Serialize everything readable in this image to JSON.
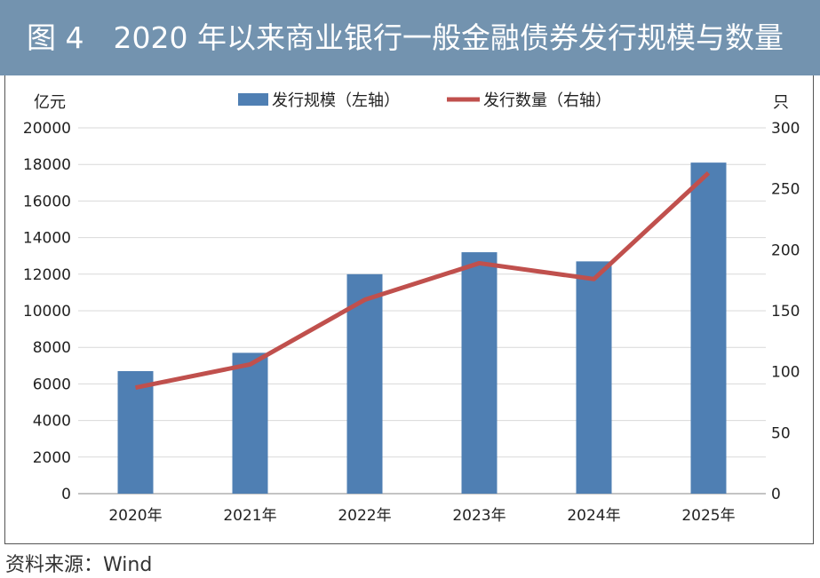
{
  "figure": {
    "title": "图 4　2020 年以来商业银行一般金融债券发行规模与数量",
    "source": "资料来源：Wind"
  },
  "colors": {
    "title_bar": "#7393af",
    "bar": "#4f7fb3",
    "line": "#c0504d",
    "grid": "#d9d9d9"
  },
  "chart_data": {
    "type": "bar",
    "categories": [
      "2020年",
      "2021年",
      "2022年",
      "2023年",
      "2024年",
      "2025年"
    ],
    "series": [
      {
        "name": "发行规模（左轴）",
        "type": "bar",
        "axis": "left",
        "values": [
          6700,
          7700,
          12000,
          13200,
          12700,
          18100
        ]
      },
      {
        "name": "发行数量（右轴）",
        "type": "line",
        "axis": "right",
        "values": [
          87,
          106,
          159,
          189,
          176,
          263
        ]
      }
    ],
    "y_left": {
      "unit": "亿元",
      "min": 0,
      "max": 20000,
      "ticks": [
        0,
        2000,
        4000,
        6000,
        8000,
        10000,
        12000,
        14000,
        16000,
        18000,
        20000
      ]
    },
    "y_right": {
      "unit": "只",
      "min": 0,
      "max": 300,
      "ticks": [
        0,
        50,
        100,
        150,
        200,
        250,
        300
      ]
    },
    "grid": true,
    "legend_position": "top-center"
  }
}
